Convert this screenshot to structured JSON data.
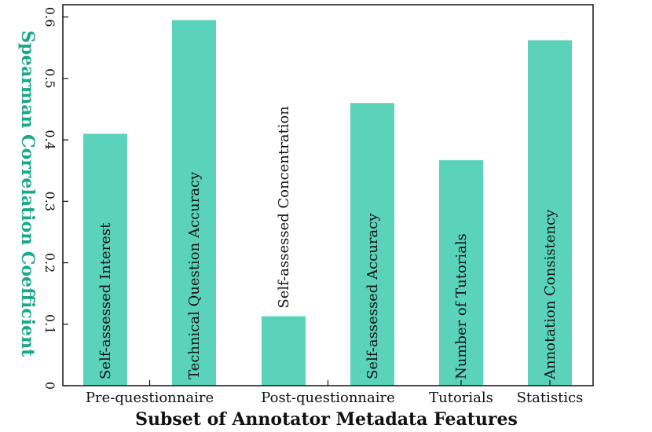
{
  "chart_data": {
    "type": "bar",
    "xlabel": "Subset of Annotator Metadata Features",
    "ylabel": "Spearman Correlation Coefficient",
    "ylabel_color": "#1aa889",
    "bar_color": "#5bd3bb",
    "ylim": [
      0,
      0.62
    ],
    "yticks": [
      0,
      0.1,
      0.2,
      0.3,
      0.4,
      0.5,
      0.6
    ],
    "ytick_labels": [
      "0",
      "0.1",
      "0.2",
      "0.3",
      "0.4",
      "0.5",
      "0.6"
    ],
    "grid": false,
    "categories": [
      "Self-assessed Interest",
      "Technical Question Accuracy",
      "Self-assessed Concentration",
      "Self-assessed Accuracy",
      "Number of Tutorials",
      "Annotation Consistency"
    ],
    "values": [
      0.41,
      0.595,
      0.113,
      0.46,
      0.367,
      0.562
    ],
    "groups": [
      {
        "label": "Pre-questionnaire",
        "categories": [
          0,
          1
        ]
      },
      {
        "label": "Post-questionnaire",
        "categories": [
          2,
          3
        ]
      },
      {
        "label": "Tutorials",
        "categories": [
          4
        ]
      },
      {
        "label": "Statistics",
        "categories": [
          5
        ]
      }
    ]
  }
}
